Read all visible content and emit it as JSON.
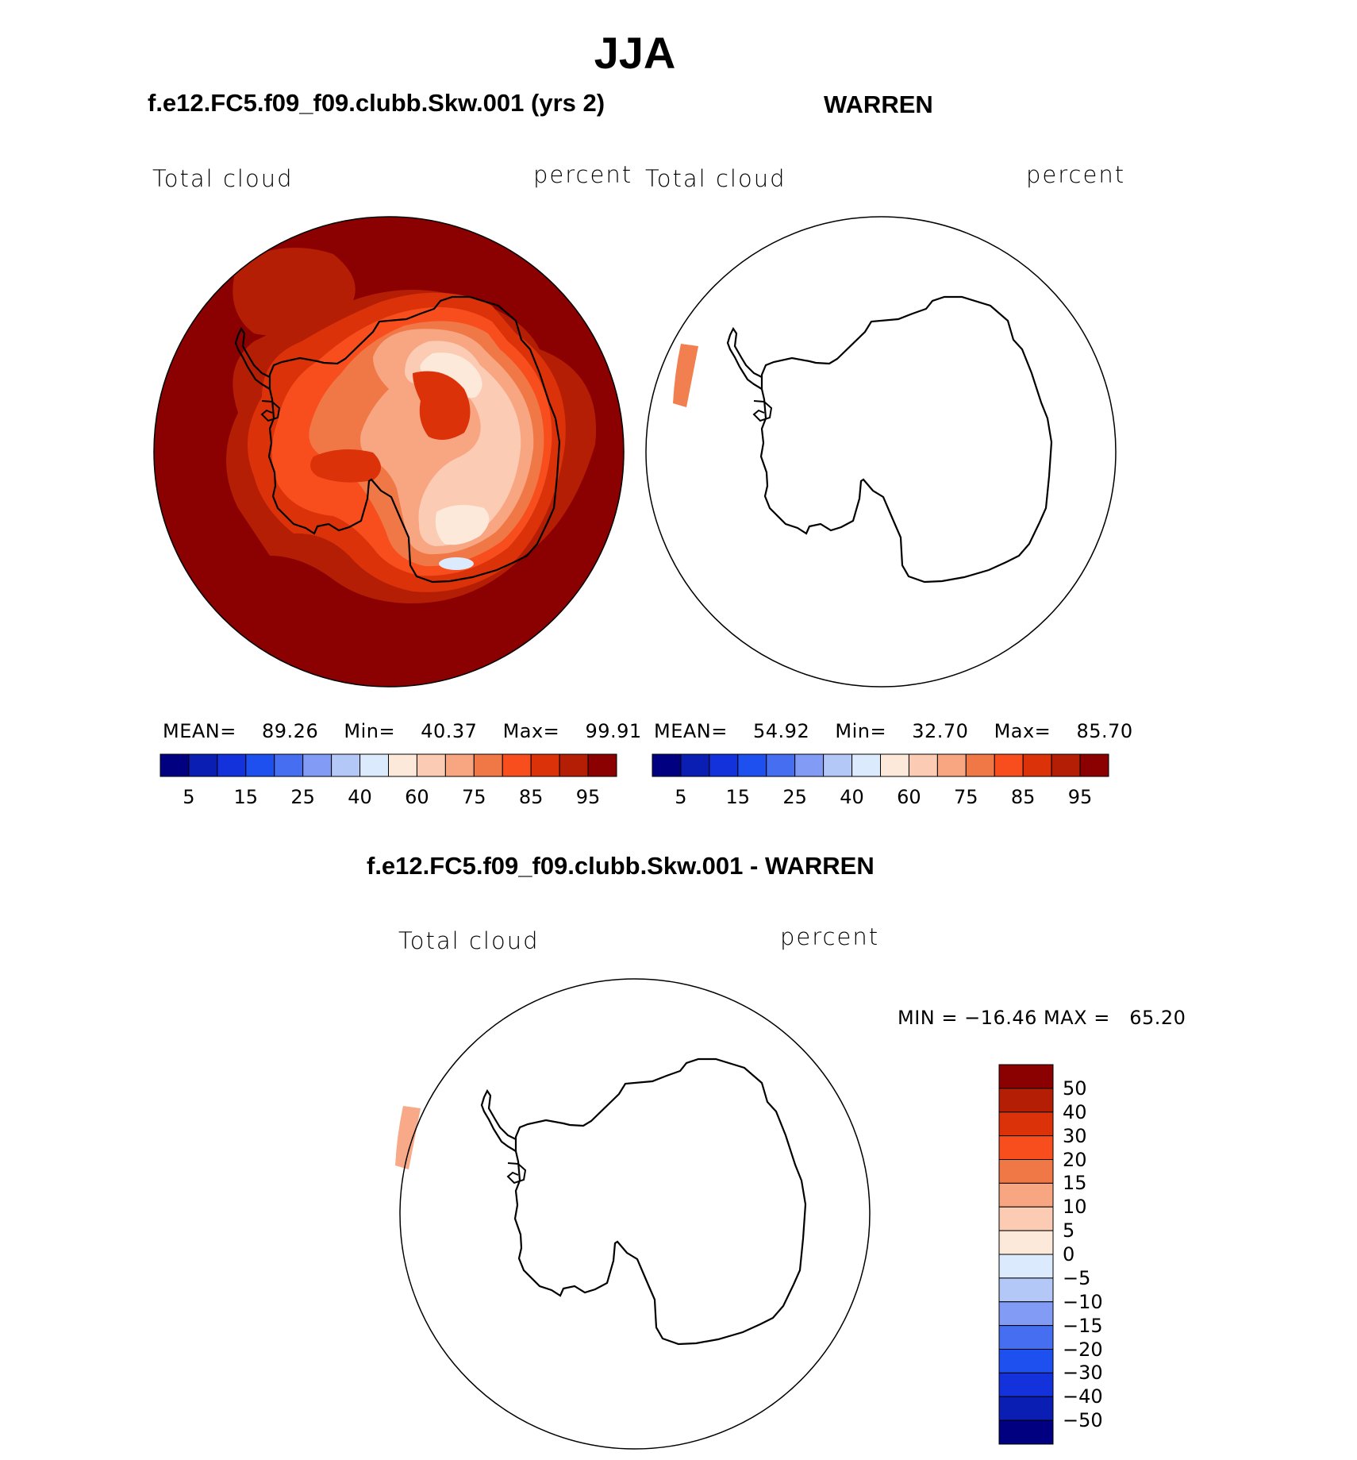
{
  "main_title": "JJA",
  "panels": [
    {
      "case_title": "f.e12.FC5.f09_f09.clubb.Skw.001 (yrs 2)",
      "variable": "Total cloud",
      "units": "percent",
      "stats": {
        "mean_label": "MEAN=",
        "mean": "89.26",
        "min_label": "Min=",
        "min": "40.37",
        "max_label": "Max=",
        "max": "99.91"
      }
    },
    {
      "case_title": "WARREN",
      "variable": "Total cloud",
      "units": "percent",
      "stats": {
        "mean_label": "MEAN=",
        "mean": "54.92",
        "min_label": "Min=",
        "min": "32.70",
        "max_label": "Max=",
        "max": "85.70"
      }
    }
  ],
  "diff_panel": {
    "case_title": "f.e12.FC5.f09_f09.clubb.Skw.001 - WARREN",
    "variable": "Total cloud",
    "units": "percent",
    "minmax_text": "MIN = −16.46 MAX =   65.20"
  },
  "colorbar_abs": {
    "colors": [
      "#000080",
      "#0a1eb4",
      "#1432dc",
      "#1e50f0",
      "#466ef0",
      "#829bf5",
      "#b4c8f8",
      "#dceafd",
      "#fde9d9",
      "#fccbb4",
      "#f8a582",
      "#f07846",
      "#f84e1e",
      "#dc320a",
      "#b41e05",
      "#8b0000"
    ],
    "labels": [
      "5",
      "15",
      "25",
      "40",
      "60",
      "75",
      "85",
      "95"
    ]
  },
  "colorbar_diff": {
    "colors": [
      "#000080",
      "#0a1eb4",
      "#1432dc",
      "#1e50f0",
      "#466ef0",
      "#829bf5",
      "#b4c8f8",
      "#dceafd",
      "#fde9d9",
      "#fccbb4",
      "#f8a582",
      "#f07846",
      "#f84e1e",
      "#dc320a",
      "#b41e05",
      "#8b0000"
    ],
    "labels": [
      "50",
      "40",
      "30",
      "20",
      "15",
      "10",
      "5",
      "0",
      "−5",
      "−10",
      "−15",
      "−20",
      "−30",
      "−40",
      "−50"
    ]
  },
  "map_colors": {
    "dark": "#8b0000",
    "mid": "#b41e05",
    "red": "#dc320a",
    "orange": "#f84e1e",
    "salmon": "#f07846",
    "peach": "#f8a582",
    "light": "#fccbb4",
    "cream": "#fde9d9",
    "pale_blue": "#dceafd"
  }
}
